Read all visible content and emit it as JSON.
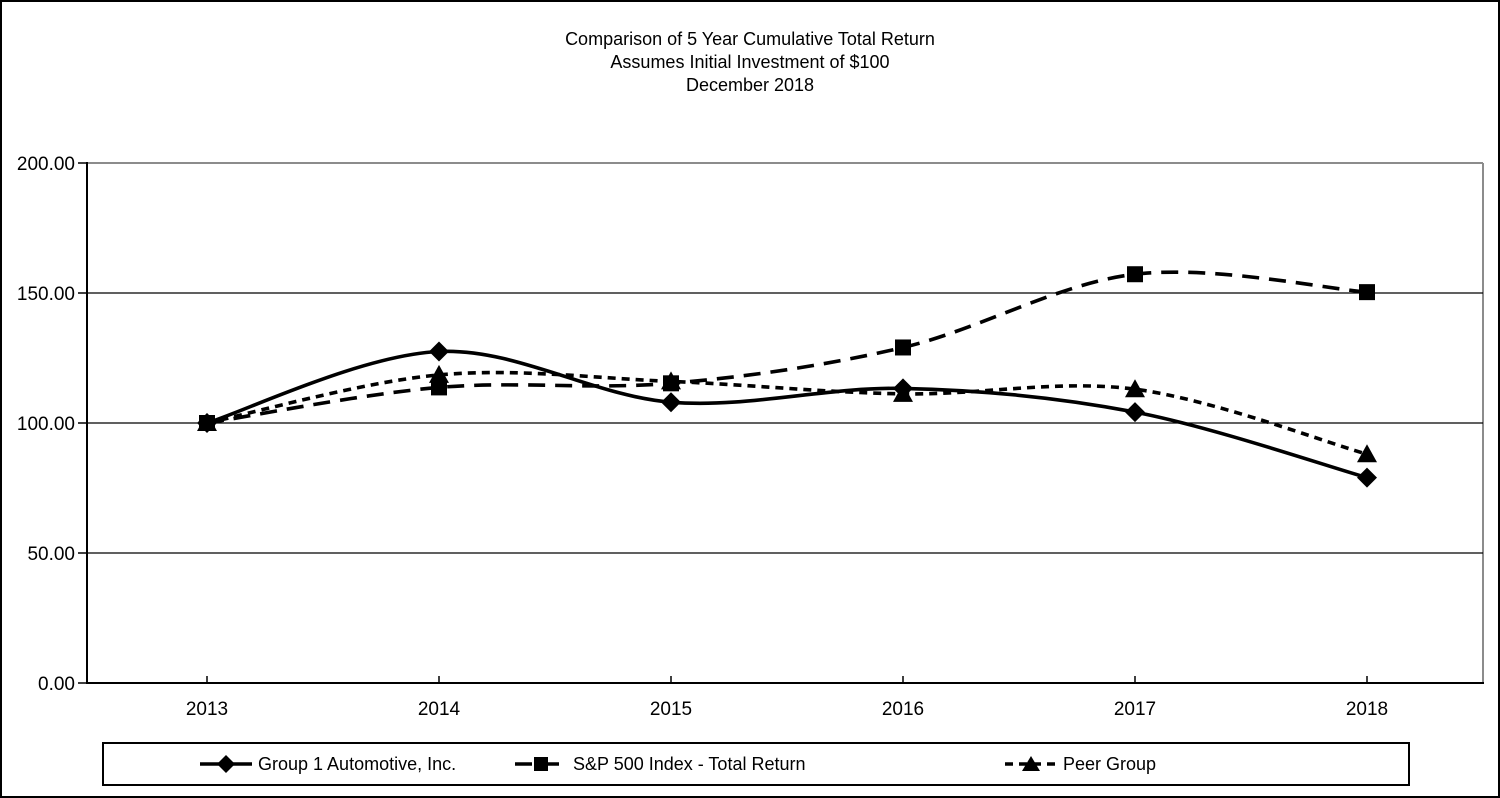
{
  "chart_data": {
    "type": "line",
    "title_lines": [
      "Comparison of 5 Year Cumulative Total Return",
      "Assumes Initial Investment of $100",
      "December 2018"
    ],
    "categories": [
      "2013",
      "2014",
      "2015",
      "2016",
      "2017",
      "2018"
    ],
    "y_axis": {
      "min": 0,
      "max": 200,
      "tick_interval": 50,
      "tick_labels": [
        "0.00",
        "50.00",
        "100.00",
        "150.00",
        "200.00"
      ]
    },
    "series": [
      {
        "name": "Group 1 Automotive, Inc.",
        "marker": "diamond",
        "line_style": "solid",
        "values": [
          100.0,
          127.5,
          108.0,
          113.3,
          104.2,
          79.0
        ]
      },
      {
        "name": "S&P 500 Index - Total Return",
        "marker": "square",
        "line_style": "long-dash",
        "values": [
          100.0,
          113.69,
          115.26,
          129.05,
          157.22,
          150.33
        ]
      },
      {
        "name": "Peer Group",
        "marker": "triangle",
        "line_style": "short-dash",
        "values": [
          100.0,
          118.5,
          116.0,
          111.2,
          113.0,
          88.0
        ]
      }
    ],
    "legend_position": "bottom",
    "grid": "horizontal",
    "smoothed_lines": true,
    "colors": {
      "series": "#000000",
      "plot_border_gray": "#8c8c8c",
      "background": "#ffffff"
    }
  }
}
